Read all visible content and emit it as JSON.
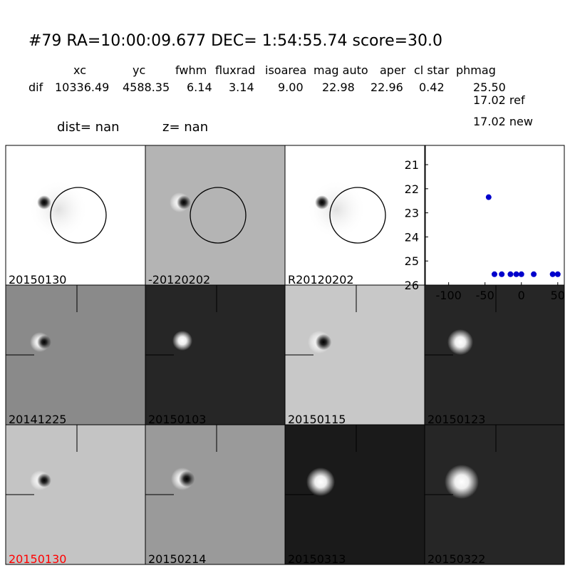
{
  "header": {
    "title": "#79   RA=10:00:09.677 DEC= 1:54:55.74      score=30.0",
    "columns": [
      "xc",
      "yc",
      "fwhm",
      "fluxrad",
      "isoarea",
      "mag auto",
      "aper",
      "cl star",
      "phmag"
    ],
    "row_label": "dif",
    "row": [
      "10336.49",
      "4588.35",
      "6.14",
      "3.14",
      "9.00",
      "22.98",
      "22.96",
      "0.42",
      "25.50"
    ],
    "phmag_extra": [
      "17.02 ref",
      "17.02 new"
    ],
    "dist": "dist=   nan",
    "z": "z=   nan"
  },
  "panels": [
    {
      "label": "20150130"
    },
    {
      "label": "-20120202"
    },
    {
      "label": "R20120202"
    },
    {
      "label": "20141225"
    },
    {
      "label": "20150103"
    },
    {
      "label": "20150115"
    },
    {
      "label": "20150123"
    },
    {
      "label": "20150130",
      "color": "red"
    },
    {
      "label": "20150214"
    },
    {
      "label": "20150313"
    },
    {
      "label": "20150322"
    }
  ],
  "chart_data": {
    "type": "scatter",
    "color": "#0000cc",
    "x": [
      -45,
      -37,
      -27,
      -15,
      -7,
      0,
      17,
      43,
      50
    ],
    "values": [
      22.35,
      25.55,
      25.55,
      25.55,
      25.55,
      25.55,
      25.55,
      25.55,
      25.55
    ],
    "errors": [
      0.1,
      0.05,
      0.05,
      0.05,
      0.05,
      0.05,
      0.05,
      0.05,
      0.05
    ],
    "xlim": [
      -132,
      59
    ],
    "ylim": [
      26,
      20.2
    ],
    "xticks": [
      -100,
      -50,
      0,
      50
    ],
    "yticks": [
      21,
      22,
      23,
      24,
      25,
      26
    ]
  }
}
